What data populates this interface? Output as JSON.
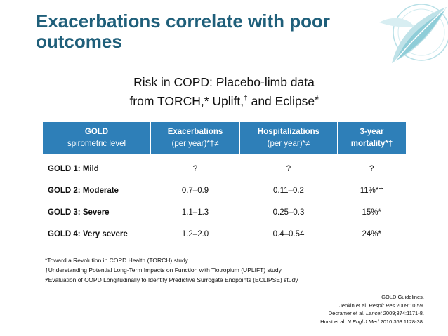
{
  "slide": {
    "title": "Exacerbations correlate with poor outcomes",
    "logo_icon": "leaf-logo-icon",
    "subtitle": {
      "line1": "Risk in COPD: Placebo-limb data",
      "line2_text": "from TORCH,* Uplift,",
      "line2_mark1": "†",
      "line2_and": " and Eclipse",
      "line2_mark2": "≠"
    }
  },
  "table": {
    "headers": [
      {
        "line1": "GOLD",
        "line2": "spirometric level"
      },
      {
        "line1": "Exacerbations",
        "line2": "(per year)*†≠"
      },
      {
        "line1": "Hospitalizations",
        "line2": "(per year)*≠"
      },
      {
        "line1": "3-year",
        "line2": "mortality*†"
      }
    ],
    "rows": [
      {
        "level": "GOLD 1: Mild",
        "exacerbations": "?",
        "hospitalizations": "?",
        "mortality": "?"
      },
      {
        "level": "GOLD 2: Moderate",
        "exacerbations": "0.7–0.9",
        "hospitalizations": "0.11–0.2",
        "mortality": "11%*†"
      },
      {
        "level": "GOLD 3: Severe",
        "exacerbations": "1.1–1.3",
        "hospitalizations": "0.25–0.3",
        "mortality": "15%*"
      },
      {
        "level": "GOLD 4: Very severe",
        "exacerbations": "1.2–2.0",
        "hospitalizations": "0.4–0.54",
        "mortality": "24%*"
      }
    ]
  },
  "footnotes": [
    "*Toward a Revolution in COPD Health (TORCH) study",
    "†Understanding Potential Long-Term Impacts on Function with Tiotropium (UPLIFT) study",
    "≠Evaluation of COPD Longitudinally to Identify Predictive Surrogate Endpoints (ECLIPSE) study"
  ],
  "references": {
    "r1": "GOLD Guidelines.",
    "r2_pre": "Jenkin et al. ",
    "r2_journal": "Respir Res",
    "r2_post": " 2009:10:59.",
    "r3_pre": "Decramer et al. ",
    "r3_journal": "Lancet",
    "r3_post": " 2009;374:1171-8.",
    "r4_pre": "Hurst et al. ",
    "r4_journal": "N Engl J Med",
    "r4_post": " 2010;363:1128-38."
  },
  "colors": {
    "title": "#1f5f7a",
    "table_header": "#2e7fb8",
    "logo": "#5fb7c6"
  }
}
